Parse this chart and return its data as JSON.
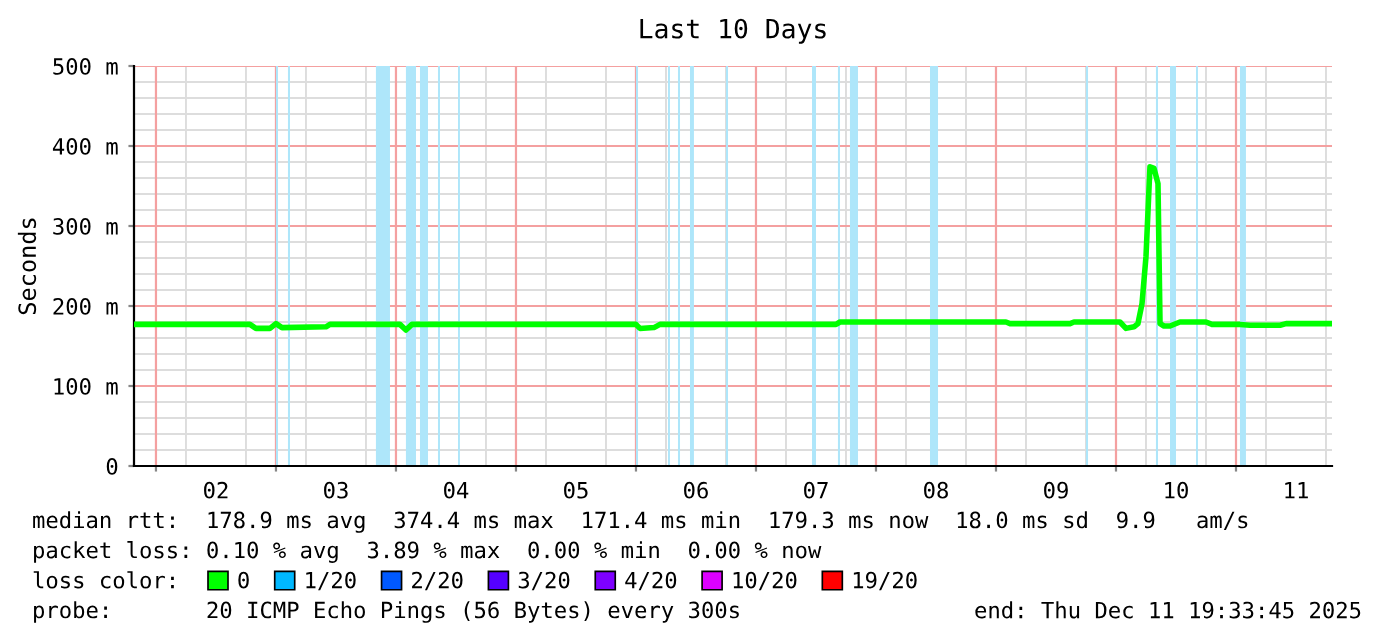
{
  "chart_data": {
    "type": "line",
    "title": "Last 10 Days",
    "ylabel": "Seconds",
    "xlim": [
      1.817,
      11.8
    ],
    "ylim": [
      0,
      500
    ],
    "xticks": [
      {
        "value": 2,
        "label": null
      },
      {
        "value": 2.5,
        "label": "02"
      },
      {
        "value": 3,
        "label": null
      },
      {
        "value": 3.5,
        "label": "03"
      },
      {
        "value": 4,
        "label": null
      },
      {
        "value": 4.5,
        "label": "04"
      },
      {
        "value": 5,
        "label": null
      },
      {
        "value": 5.5,
        "label": "05"
      },
      {
        "value": 6,
        "label": null
      },
      {
        "value": 6.5,
        "label": "06"
      },
      {
        "value": 7,
        "label": null
      },
      {
        "value": 7.5,
        "label": "07"
      },
      {
        "value": 8,
        "label": null
      },
      {
        "value": 8.5,
        "label": "08"
      },
      {
        "value": 9,
        "label": null
      },
      {
        "value": 9.5,
        "label": "09"
      },
      {
        "value": 10,
        "label": null
      },
      {
        "value": 10.5,
        "label": "10"
      },
      {
        "value": 11,
        "label": null
      },
      {
        "value": 11.5,
        "label": "11"
      }
    ],
    "yticks": [
      {
        "value": 0,
        "label": "0"
      },
      {
        "value": 100,
        "label": "100 m"
      },
      {
        "value": 200,
        "label": "200 m"
      },
      {
        "value": 300,
        "label": "300 m"
      },
      {
        "value": 400,
        "label": "400 m"
      },
      {
        "value": 500,
        "label": "500 m"
      }
    ],
    "grid": true,
    "legend": "bottom",
    "marker": "none",
    "line_style": "solid",
    "series": [
      {
        "name": "0",
        "color": "#00ff00",
        "x": [
          1.817,
          2.783,
          2.833,
          2.95,
          3.0,
          3.05,
          3.417,
          3.45,
          4.033,
          4.083,
          4.133,
          6.0,
          6.033,
          6.15,
          6.2,
          7.667,
          7.7,
          9.083,
          9.117,
          9.617,
          9.65,
          10.033,
          10.083,
          10.15,
          10.183,
          10.217,
          10.25,
          10.283,
          10.317,
          10.35,
          10.367,
          10.4,
          10.45,
          10.533,
          10.75,
          10.8,
          11.033,
          11.117,
          11.367,
          11.417,
          11.8
        ],
        "values": [
          177,
          177,
          172,
          172,
          178,
          173,
          174,
          177,
          177,
          170,
          177,
          177,
          172,
          173,
          177,
          177,
          180,
          180,
          178,
          178,
          180,
          180,
          172,
          174,
          178,
          203,
          262,
          374,
          372,
          353,
          178,
          175,
          175,
          180,
          180,
          177,
          177,
          176,
          176,
          178,
          178
        ]
      },
      {
        "name": "1/20",
        "color": "#00b8ff"
      },
      {
        "name": "2/20",
        "color": "#0059ff"
      },
      {
        "name": "3/20",
        "color": "#5500ff"
      },
      {
        "name": "4/20",
        "color": "#7e00ff"
      },
      {
        "name": "10/20",
        "color": "#dd00ff"
      },
      {
        "name": "19/20",
        "color": "#ff0000"
      }
    ],
    "bands": [
      {
        "axis": "x",
        "from": 3.0,
        "to": 3.017,
        "color": "#aee6fa"
      },
      {
        "axis": "x",
        "from": 3.1,
        "to": 3.117,
        "color": "#aee6fa"
      },
      {
        "axis": "x",
        "from": 3.833,
        "to": 3.95,
        "color": "#aee6fa"
      },
      {
        "axis": "x",
        "from": 4.083,
        "to": 4.167,
        "color": "#aee6fa"
      },
      {
        "axis": "x",
        "from": 4.2,
        "to": 4.267,
        "color": "#aee6fa"
      },
      {
        "axis": "x",
        "from": 4.35,
        "to": 4.367,
        "color": "#aee6fa"
      },
      {
        "axis": "x",
        "from": 4.517,
        "to": 4.533,
        "color": "#aee6fa"
      },
      {
        "axis": "x",
        "from": 6.0,
        "to": 6.017,
        "color": "#aee6fa"
      },
      {
        "axis": "x",
        "from": 6.267,
        "to": 6.283,
        "color": "#aee6fa"
      },
      {
        "axis": "x",
        "from": 6.35,
        "to": 6.367,
        "color": "#aee6fa"
      },
      {
        "axis": "x",
        "from": 6.45,
        "to": 6.483,
        "color": "#aee6fa"
      },
      {
        "axis": "x",
        "from": 6.75,
        "to": 6.767,
        "color": "#aee6fa"
      },
      {
        "axis": "x",
        "from": 7.467,
        "to": 7.5,
        "color": "#aee6fa"
      },
      {
        "axis": "x",
        "from": 7.683,
        "to": 7.7,
        "color": "#aee6fa"
      },
      {
        "axis": "x",
        "from": 7.783,
        "to": 7.85,
        "color": "#aee6fa"
      },
      {
        "axis": "x",
        "from": 8.45,
        "to": 8.517,
        "color": "#aee6fa"
      },
      {
        "axis": "x",
        "from": 9.75,
        "to": 9.767,
        "color": "#aee6fa"
      },
      {
        "axis": "x",
        "from": 10.333,
        "to": 10.35,
        "color": "#aee6fa"
      },
      {
        "axis": "x",
        "from": 10.45,
        "to": 10.5,
        "color": "#aee6fa"
      },
      {
        "axis": "x",
        "from": 10.667,
        "to": 10.683,
        "color": "#aee6fa"
      },
      {
        "axis": "x",
        "from": 11.033,
        "to": 11.083,
        "color": "#aee6fa"
      }
    ],
    "annotations": [
      "median rtt:  178.9 ms avg  374.4 ms max  171.4 ms min  179.3 ms now  18.0 ms sd  9.9   am/s",
      "packet loss: 0.10 % avg  3.89 % max  0.00 % min  0.00 % now",
      "loss color:",
      "probe:       20 ICMP Echo Pings (56 Bytes) every 300s",
      "end: Thu Dec 11 19:33:45 2025"
    ]
  }
}
